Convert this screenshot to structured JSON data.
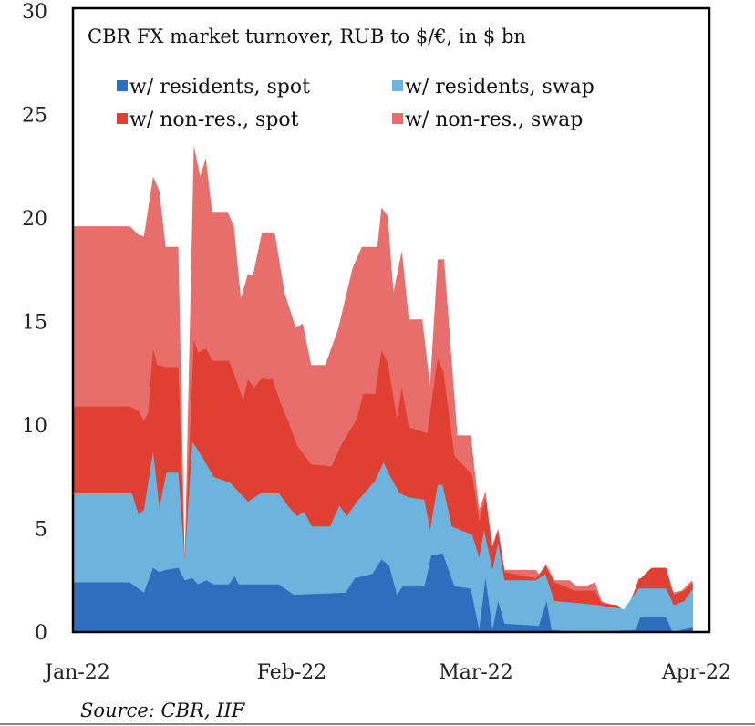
{
  "chart_data": {
    "type": "area",
    "stacked": true,
    "values_are": "cumulative stack top per series (bottom to top), x in days since 1 Jan 2022",
    "title": "CBR FX market turnover, RUB to $/€, in $ bn",
    "xlabel": "",
    "ylabel": "",
    "ylim": [
      0,
      30
    ],
    "xlim": [
      0,
      89
    ],
    "yticks": [
      "0",
      "5",
      "10",
      "15",
      "20",
      "25",
      "30"
    ],
    "xticks": [
      {
        "label": "Jan-22",
        "day": 0
      },
      {
        "label": "Feb-22",
        "day": 31
      },
      {
        "label": "Mar-22",
        "day": 59
      },
      {
        "label": "Apr-22",
        "day": 89
      }
    ],
    "grid": false,
    "legend_position": "top",
    "source": "Source: CBR, IIF",
    "series": [
      {
        "name": "w/ residents, spot",
        "color": "#2f6ebd",
        "points": [
          [
            0,
            2.4
          ],
          [
            8.1,
            2.4
          ],
          [
            10.1,
            1.9
          ],
          [
            11.4,
            3.1
          ],
          [
            12.3,
            2.9
          ],
          [
            13.2,
            3.0
          ],
          [
            15.0,
            3.1
          ],
          [
            15.9,
            2.5
          ],
          [
            17.0,
            2.6
          ],
          [
            17.8,
            2.3
          ],
          [
            19.0,
            2.5
          ],
          [
            20.0,
            2.3
          ],
          [
            22.2,
            2.3
          ],
          [
            23.0,
            2.7
          ],
          [
            23.6,
            2.3
          ],
          [
            29.3,
            2.3
          ],
          [
            31.4,
            1.8
          ],
          [
            38.8,
            1.9
          ],
          [
            40.1,
            2.6
          ],
          [
            42.6,
            2.8
          ],
          [
            43.9,
            3.5
          ],
          [
            45.0,
            3.2
          ],
          [
            46.1,
            1.8
          ],
          [
            46.9,
            2.2
          ],
          [
            50.0,
            2.2
          ],
          [
            51.0,
            3.7
          ],
          [
            52.6,
            3.8
          ],
          [
            54.3,
            2.2
          ],
          [
            56.6,
            2.1
          ],
          [
            57.8,
            0.1
          ],
          [
            58.7,
            2.6
          ],
          [
            59.7,
            0.1
          ],
          [
            60.5,
            1.5
          ],
          [
            61.4,
            0.4
          ],
          [
            66.3,
            0.3
          ],
          [
            67.4,
            1.5
          ],
          [
            68.1,
            0.1
          ],
          [
            72.4,
            0
          ],
          [
            80.1,
            0.1
          ],
          [
            80.7,
            0.7
          ],
          [
            84.4,
            0.7
          ],
          [
            85.3,
            0
          ],
          [
            87.9,
            0.2
          ],
          [
            88.2,
            0.2
          ]
        ]
      },
      {
        "name": "w/ residents, swap",
        "color": "#6cb3de",
        "points": [
          [
            0,
            6.7
          ],
          [
            8.4,
            6.7
          ],
          [
            9.3,
            5.7
          ],
          [
            10.1,
            5.9
          ],
          [
            11.4,
            8.7
          ],
          [
            12.3,
            6.0
          ],
          [
            13.3,
            7.7
          ],
          [
            15.0,
            7.7
          ],
          [
            15.9,
            3.5
          ],
          [
            17.0,
            9.2
          ],
          [
            18.5,
            8.4
          ],
          [
            20.0,
            7.5
          ],
          [
            22.4,
            7.2
          ],
          [
            24.9,
            6.3
          ],
          [
            26.7,
            6.7
          ],
          [
            29.3,
            6.7
          ],
          [
            30.8,
            6.0
          ],
          [
            31.9,
            5.6
          ],
          [
            32.9,
            5.8
          ],
          [
            34.0,
            5.1
          ],
          [
            36.6,
            5.1
          ],
          [
            37.9,
            6.1
          ],
          [
            39.0,
            5.6
          ],
          [
            40.4,
            6.3
          ],
          [
            43.0,
            7.3
          ],
          [
            44.2,
            8.2
          ],
          [
            45.0,
            7.6
          ],
          [
            46.5,
            6.7
          ],
          [
            47.8,
            6.5
          ],
          [
            50.0,
            6.4
          ],
          [
            50.8,
            4.9
          ],
          [
            51.9,
            7.1
          ],
          [
            52.6,
            7.1
          ],
          [
            53.9,
            5.1
          ],
          [
            56.8,
            4.7
          ],
          [
            57.8,
            3.6
          ],
          [
            58.5,
            4.9
          ],
          [
            59.7,
            3.0
          ],
          [
            60.5,
            4.3
          ],
          [
            61.4,
            2.5
          ],
          [
            65.9,
            2.5
          ],
          [
            67.2,
            2.8
          ],
          [
            68.5,
            1.5
          ],
          [
            74.9,
            1.3
          ],
          [
            78.4,
            1.1
          ],
          [
            80.5,
            2.1
          ],
          [
            84.4,
            2.1
          ],
          [
            85.5,
            1.3
          ],
          [
            87.0,
            1.5
          ],
          [
            88.2,
            2.1
          ]
        ]
      },
      {
        "name": "w/ non-res., spot",
        "color": "#e23f33",
        "points": [
          [
            0,
            10.9
          ],
          [
            8.1,
            10.9
          ],
          [
            9.3,
            10.7
          ],
          [
            10.1,
            10.2
          ],
          [
            10.7,
            10.6
          ],
          [
            11.4,
            13.7
          ],
          [
            12.0,
            12.9
          ],
          [
            13.2,
            12.8
          ],
          [
            15.0,
            12.8
          ],
          [
            15.9,
            3.5
          ],
          [
            17.2,
            14.1
          ],
          [
            17.8,
            13.5
          ],
          [
            19.0,
            13.7
          ],
          [
            19.8,
            13.1
          ],
          [
            22.2,
            13.1
          ],
          [
            23.0,
            12.4
          ],
          [
            24.2,
            11.2
          ],
          [
            24.9,
            12.2
          ],
          [
            25.8,
            11.8
          ],
          [
            26.9,
            12.3
          ],
          [
            28.4,
            12.2
          ],
          [
            29.5,
            11.1
          ],
          [
            30.6,
            10.2
          ],
          [
            31.9,
            9.0
          ],
          [
            33.9,
            8.1
          ],
          [
            36.8,
            8.0
          ],
          [
            38.1,
            9.0
          ],
          [
            40.4,
            10.3
          ],
          [
            41.3,
            11.5
          ],
          [
            43.0,
            11.5
          ],
          [
            43.9,
            13.6
          ],
          [
            44.8,
            13.0
          ],
          [
            46.1,
            10.3
          ],
          [
            46.8,
            11.8
          ],
          [
            47.8,
            9.9
          ],
          [
            50.4,
            9.6
          ],
          [
            51.9,
            13.2
          ],
          [
            52.7,
            12.6
          ],
          [
            54.3,
            8.5
          ],
          [
            56.8,
            7.6
          ],
          [
            57.8,
            5.4
          ],
          [
            58.7,
            6.5
          ],
          [
            59.7,
            4.1
          ],
          [
            60.5,
            4.9
          ],
          [
            61.4,
            2.9
          ],
          [
            65.9,
            2.6
          ],
          [
            67.2,
            3.2
          ],
          [
            68.5,
            2.4
          ],
          [
            71.4,
            2.0
          ],
          [
            74.3,
            2.0
          ],
          [
            75.2,
            1.4
          ],
          [
            77.5,
            1.3
          ],
          [
            78.6,
            0.9
          ],
          [
            80.5,
            2.5
          ],
          [
            82.3,
            3.1
          ],
          [
            84.4,
            3.1
          ],
          [
            85.5,
            1.8
          ],
          [
            87.0,
            2.0
          ],
          [
            88.2,
            2.4
          ]
        ]
      },
      {
        "name": "w/ non-res., swap",
        "color": "#e86e6b",
        "points": [
          [
            0,
            19.6
          ],
          [
            8.1,
            19.6
          ],
          [
            9.3,
            19.2
          ],
          [
            10.1,
            19.1
          ],
          [
            11.4,
            22.0
          ],
          [
            12.3,
            21.3
          ],
          [
            13.2,
            18.6
          ],
          [
            15.0,
            18.6
          ],
          [
            15.9,
            3.5
          ],
          [
            17.2,
            23.5
          ],
          [
            18.1,
            22.0
          ],
          [
            18.9,
            22.9
          ],
          [
            19.8,
            20.3
          ],
          [
            22.0,
            20.3
          ],
          [
            22.9,
            19.6
          ],
          [
            23.9,
            16.1
          ],
          [
            24.9,
            17.3
          ],
          [
            25.6,
            17.2
          ],
          [
            26.9,
            19.3
          ],
          [
            28.7,
            19.3
          ],
          [
            30.1,
            16.4
          ],
          [
            31.7,
            14.7
          ],
          [
            32.7,
            14.9
          ],
          [
            33.9,
            12.9
          ],
          [
            35.9,
            12.9
          ],
          [
            37.7,
            14.6
          ],
          [
            39.8,
            17.6
          ],
          [
            41.1,
            18.6
          ],
          [
            43.3,
            18.6
          ],
          [
            43.9,
            20.5
          ],
          [
            44.8,
            20.1
          ],
          [
            45.6,
            16.4
          ],
          [
            46.8,
            18.4
          ],
          [
            47.8,
            15.1
          ],
          [
            49.7,
            15.1
          ],
          [
            50.8,
            11.9
          ],
          [
            51.9,
            18.0
          ],
          [
            52.8,
            18.0
          ],
          [
            54.7,
            9.5
          ],
          [
            56.6,
            9.5
          ],
          [
            57.8,
            5.9
          ],
          [
            58.7,
            6.8
          ],
          [
            59.6,
            4.1
          ],
          [
            60.5,
            5.0
          ],
          [
            61.4,
            3.0
          ],
          [
            65.9,
            3.0
          ],
          [
            66.7,
            2.6
          ],
          [
            67.3,
            3.3
          ],
          [
            68.5,
            2.5
          ],
          [
            70.7,
            2.5
          ],
          [
            71.7,
            2.2
          ],
          [
            72.7,
            2.2
          ],
          [
            74.3,
            2.4
          ],
          [
            75.2,
            1.5
          ],
          [
            78.2,
            1.1
          ],
          [
            78.8,
            0.9
          ],
          [
            80.5,
            2.6
          ],
          [
            81.8,
            2.6
          ],
          [
            82.7,
            3.1
          ],
          [
            84.4,
            3.1
          ],
          [
            85.3,
            1.9
          ],
          [
            86.6,
            2.0
          ],
          [
            88.1,
            2.5
          ]
        ]
      }
    ]
  }
}
